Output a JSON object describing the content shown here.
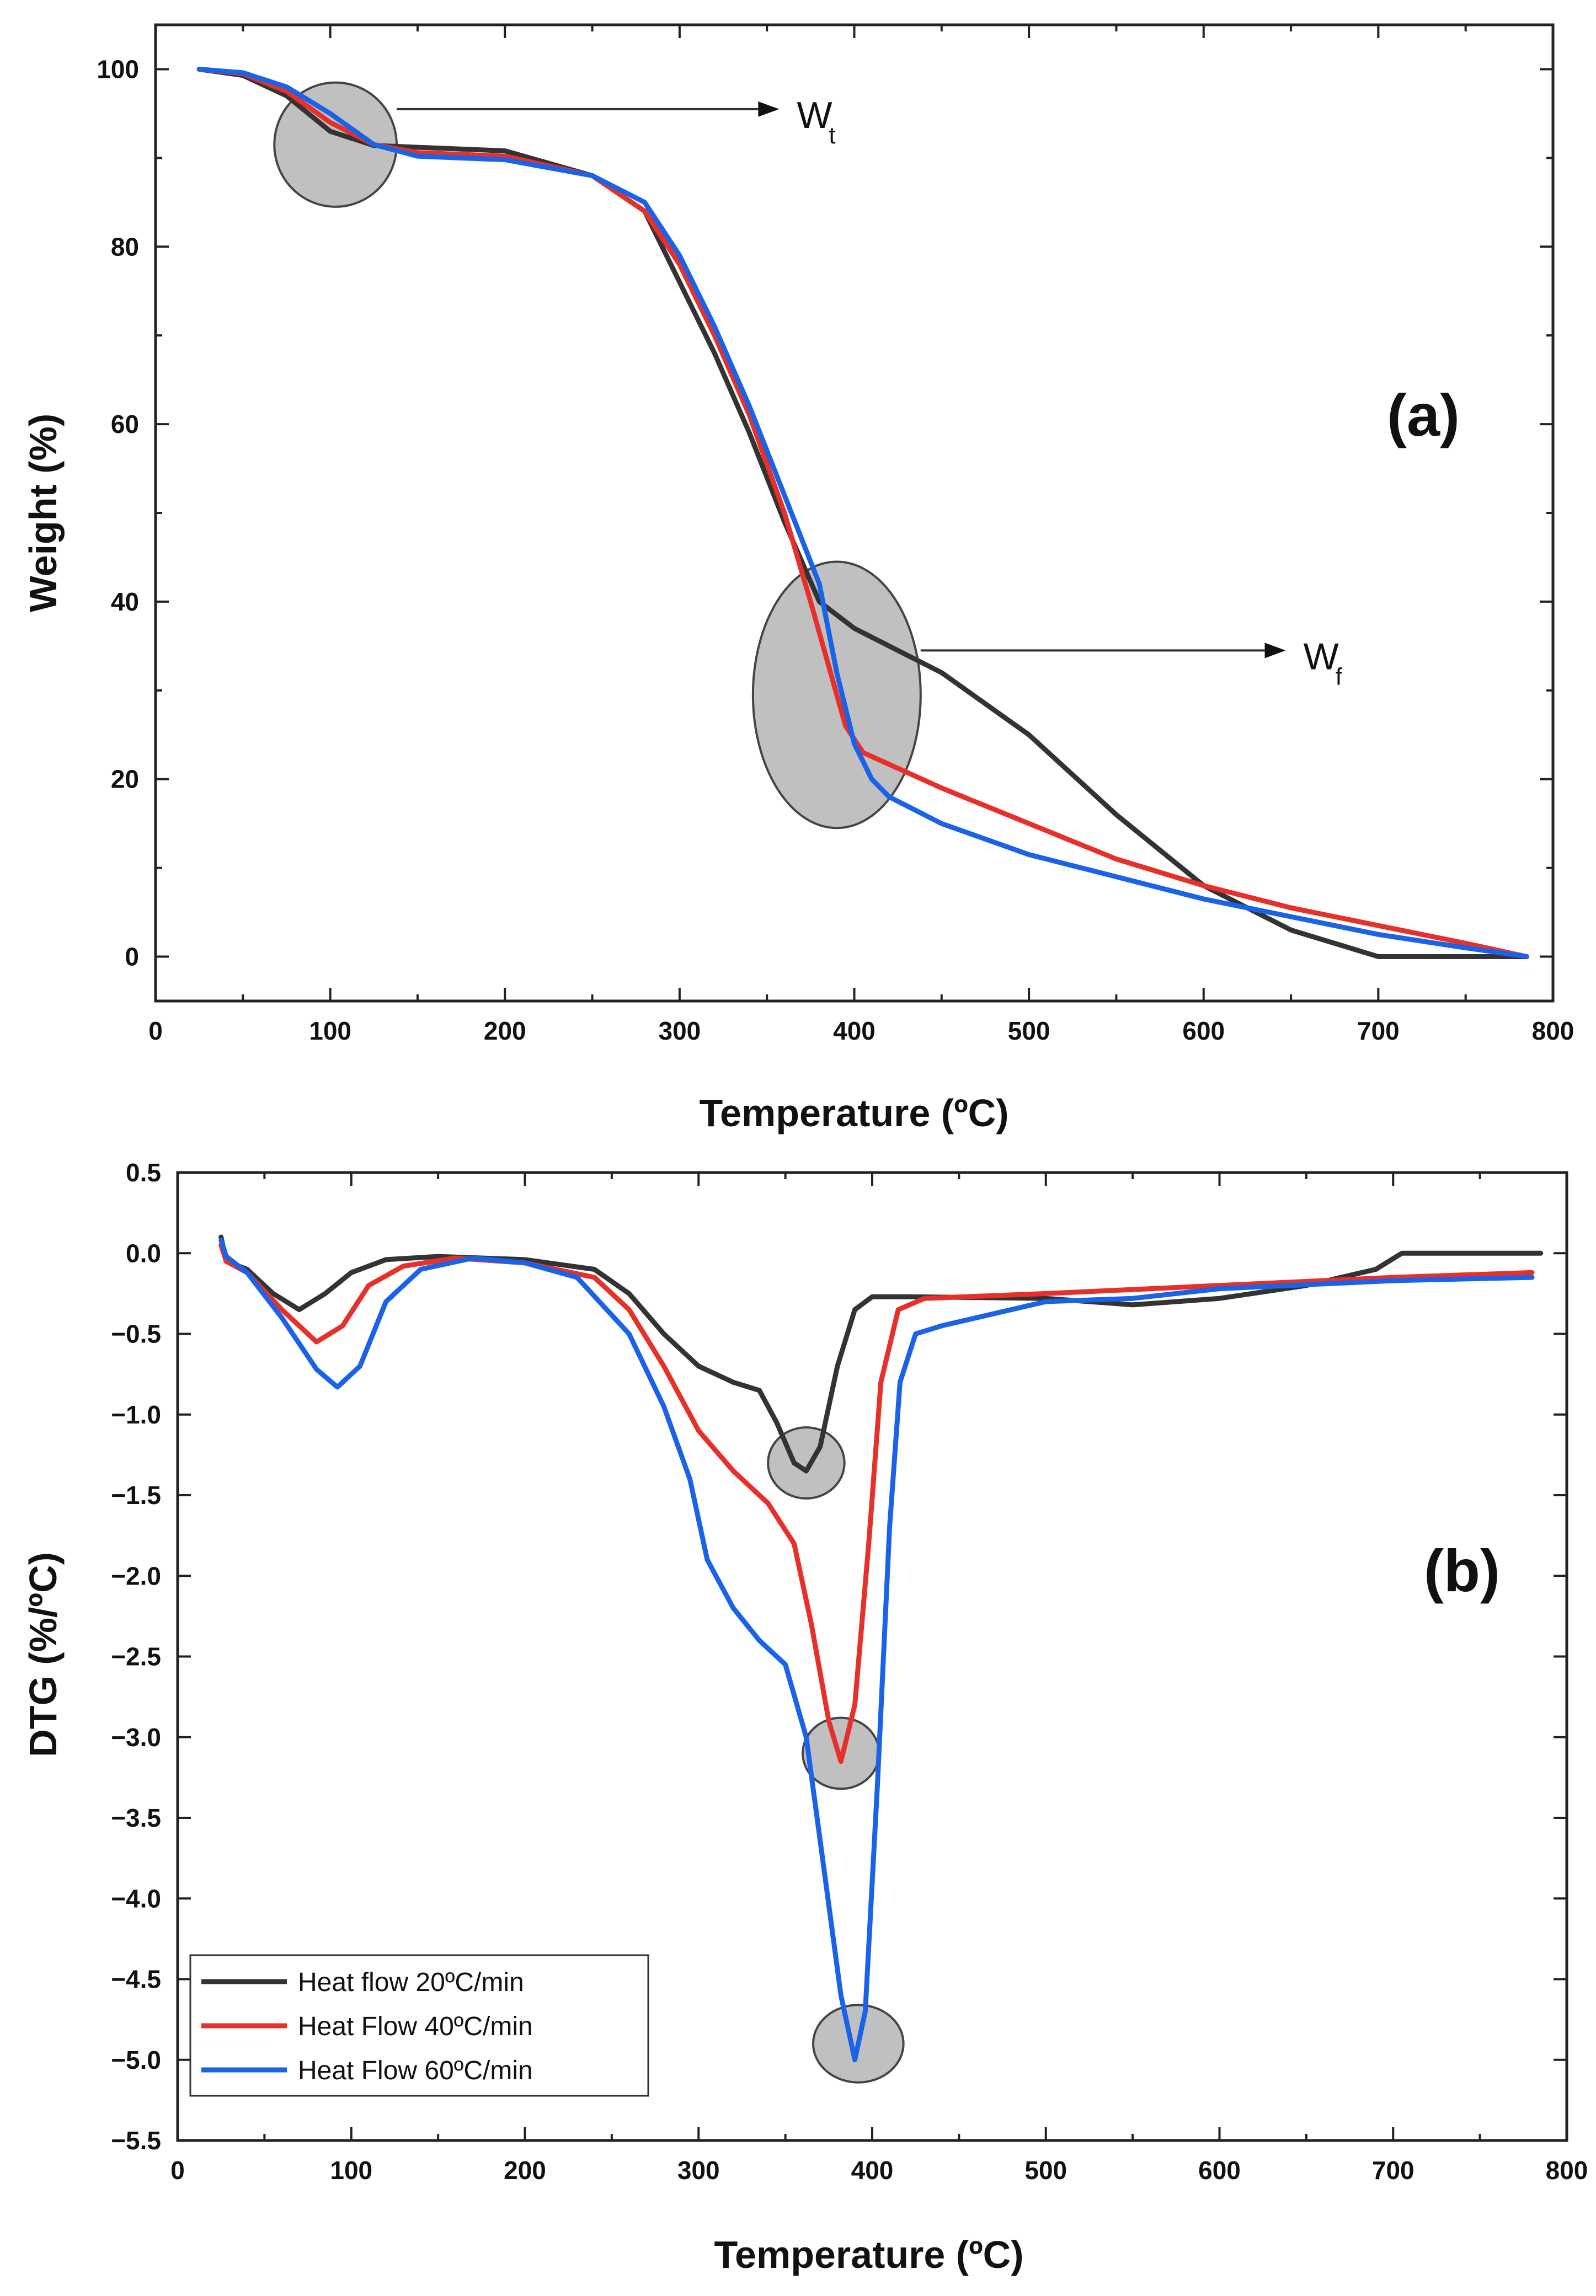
{
  "chart_data": [
    {
      "id": "a",
      "type": "line",
      "panel_label": "(a)",
      "xlabel": "Temperature (ºC)",
      "ylabel": "Weight (%)",
      "xlim": [
        0,
        800
      ],
      "ylim": [
        -5,
        105
      ],
      "xticks": [
        0,
        100,
        200,
        300,
        400,
        500,
        600,
        700,
        800
      ],
      "yticks": [
        0,
        20,
        40,
        60,
        80,
        100
      ],
      "grid": false,
      "series": [
        {
          "name": "Heat flow 20ºC/min",
          "color": "#333333",
          "points": [
            [
              25,
              100
            ],
            [
              50,
              99.3
            ],
            [
              75,
              97
            ],
            [
              100,
              93
            ],
            [
              125,
              91.4
            ],
            [
              150,
              91.2
            ],
            [
              200,
              90.8
            ],
            [
              250,
              88
            ],
            [
              280,
              84
            ],
            [
              300,
              76
            ],
            [
              320,
              68
            ],
            [
              340,
              59
            ],
            [
              360,
              49
            ],
            [
              380,
              40
            ],
            [
              400,
              37
            ],
            [
              450,
              32
            ],
            [
              500,
              25
            ],
            [
              550,
              16
            ],
            [
              600,
              8
            ],
            [
              650,
              3
            ],
            [
              700,
              0
            ],
            [
              750,
              0
            ],
            [
              785,
              0
            ]
          ]
        },
        {
          "name": "Heat Flow 40ºC/min",
          "color": "#e8302a",
          "points": [
            [
              25,
              100
            ],
            [
              50,
              99.5
            ],
            [
              75,
              97.5
            ],
            [
              100,
              94
            ],
            [
              125,
              91.5
            ],
            [
              150,
              90.6
            ],
            [
              200,
              90.2
            ],
            [
              250,
              88
            ],
            [
              280,
              84
            ],
            [
              300,
              78
            ],
            [
              320,
              70
            ],
            [
              340,
              61
            ],
            [
              360,
              50
            ],
            [
              375,
              40
            ],
            [
              385,
              33
            ],
            [
              395,
              26
            ],
            [
              405,
              23
            ],
            [
              450,
              19
            ],
            [
              500,
              15
            ],
            [
              550,
              11
            ],
            [
              600,
              8
            ],
            [
              650,
              5.5
            ],
            [
              700,
              3.5
            ],
            [
              750,
              1.5
            ],
            [
              785,
              0
            ]
          ]
        },
        {
          "name": "Heat Flow 60ºC/min",
          "color": "#1a63e8",
          "points": [
            [
              25,
              100
            ],
            [
              50,
              99.6
            ],
            [
              75,
              98
            ],
            [
              100,
              95
            ],
            [
              125,
              91.5
            ],
            [
              150,
              90.2
            ],
            [
              200,
              89.8
            ],
            [
              250,
              88
            ],
            [
              280,
              85
            ],
            [
              300,
              79
            ],
            [
              320,
              71
            ],
            [
              340,
              62
            ],
            [
              360,
              52
            ],
            [
              380,
              42
            ],
            [
              390,
              32
            ],
            [
              400,
              24
            ],
            [
              410,
              20
            ],
            [
              420,
              18
            ],
            [
              450,
              15
            ],
            [
              500,
              11.5
            ],
            [
              550,
              9
            ],
            [
              600,
              6.5
            ],
            [
              650,
              4.5
            ],
            [
              700,
              2.5
            ],
            [
              750,
              1
            ],
            [
              785,
              0
            ]
          ]
        }
      ],
      "annotations": [
        {
          "label": "W",
          "sub": "t",
          "cx": 103,
          "cy": 91.5,
          "rx": 35,
          "ry": 7,
          "arrow_to_x": 345,
          "arrow_y": 95.5
        },
        {
          "label": "W",
          "sub": "f",
          "cx": 390,
          "cy": 29.5,
          "rx": 48,
          "ry": 15,
          "arrow_to_x": 635,
          "arrow_y": 34.5
        }
      ]
    },
    {
      "id": "b",
      "type": "line",
      "panel_label": "(b)",
      "xlabel": "Temperature (ºC)",
      "ylabel": "DTG (%/ºC)",
      "xlim": [
        0,
        800
      ],
      "ylim": [
        -5.5,
        0.5
      ],
      "xticks": [
        0,
        100,
        200,
        300,
        400,
        500,
        600,
        700,
        800
      ],
      "yticks": [
        0.5,
        0.0,
        -0.5,
        -1.0,
        -1.5,
        -2.0,
        -2.5,
        -3.0,
        -3.5,
        -4.0,
        -4.5,
        -5.0,
        -5.5
      ],
      "ytick_labels": [
        "0.5",
        "0.0",
        "−0.5",
        "−1.0",
        "−1.5",
        "−2.0",
        "−2.5",
        "−3.0",
        "−3.5",
        "−4.0",
        "−4.5",
        "−5.0",
        "−5.5"
      ],
      "grid": false,
      "legend": {
        "position": "bottom-left",
        "entries": [
          "Heat flow 20ºC/min",
          "Heat Flow 40ºC/min",
          "Heat Flow 60ºC/min"
        ]
      },
      "series": [
        {
          "name": "Heat flow 20ºC/min",
          "color": "#333333",
          "points": [
            [
              25,
              0.1
            ],
            [
              28,
              -0.05
            ],
            [
              40,
              -0.1
            ],
            [
              55,
              -0.25
            ],
            [
              70,
              -0.35
            ],
            [
              85,
              -0.25
            ],
            [
              100,
              -0.12
            ],
            [
              120,
              -0.04
            ],
            [
              150,
              -0.02
            ],
            [
              200,
              -0.04
            ],
            [
              240,
              -0.1
            ],
            [
              260,
              -0.25
            ],
            [
              280,
              -0.5
            ],
            [
              300,
              -0.7
            ],
            [
              320,
              -0.8
            ],
            [
              335,
              -0.85
            ],
            [
              345,
              -1.05
            ],
            [
              355,
              -1.3
            ],
            [
              362,
              -1.35
            ],
            [
              370,
              -1.2
            ],
            [
              380,
              -0.7
            ],
            [
              390,
              -0.35
            ],
            [
              400,
              -0.27
            ],
            [
              420,
              -0.27
            ],
            [
              500,
              -0.28
            ],
            [
              550,
              -0.32
            ],
            [
              600,
              -0.28
            ],
            [
              650,
              -0.2
            ],
            [
              690,
              -0.1
            ],
            [
              705,
              0
            ],
            [
              750,
              0
            ],
            [
              785,
              0
            ]
          ]
        },
        {
          "name": "Heat Flow 40ºC/min",
          "color": "#e8302a",
          "points": [
            [
              25,
              0.05
            ],
            [
              28,
              -0.05
            ],
            [
              40,
              -0.12
            ],
            [
              60,
              -0.35
            ],
            [
              80,
              -0.55
            ],
            [
              95,
              -0.45
            ],
            [
              110,
              -0.2
            ],
            [
              130,
              -0.08
            ],
            [
              160,
              -0.03
            ],
            [
              200,
              -0.06
            ],
            [
              240,
              -0.15
            ],
            [
              260,
              -0.35
            ],
            [
              280,
              -0.7
            ],
            [
              300,
              -1.1
            ],
            [
              320,
              -1.35
            ],
            [
              340,
              -1.55
            ],
            [
              355,
              -1.8
            ],
            [
              365,
              -2.3
            ],
            [
              375,
              -2.9
            ],
            [
              382,
              -3.15
            ],
            [
              390,
              -2.8
            ],
            [
              398,
              -1.8
            ],
            [
              405,
              -0.8
            ],
            [
              415,
              -0.35
            ],
            [
              430,
              -0.28
            ],
            [
              500,
              -0.25
            ],
            [
              600,
              -0.2
            ],
            [
              700,
              -0.15
            ],
            [
              780,
              -0.12
            ]
          ]
        },
        {
          "name": "Heat Flow 60ºC/min",
          "color": "#1a63e8",
          "points": [
            [
              25,
              0.08
            ],
            [
              28,
              -0.02
            ],
            [
              40,
              -0.12
            ],
            [
              60,
              -0.4
            ],
            [
              80,
              -0.72
            ],
            [
              92,
              -0.83
            ],
            [
              105,
              -0.7
            ],
            [
              120,
              -0.3
            ],
            [
              140,
              -0.1
            ],
            [
              170,
              -0.03
            ],
            [
              200,
              -0.06
            ],
            [
              230,
              -0.15
            ],
            [
              260,
              -0.5
            ],
            [
              280,
              -0.95
            ],
            [
              295,
              -1.4
            ],
            [
              305,
              -1.9
            ],
            [
              320,
              -2.2
            ],
            [
              335,
              -2.4
            ],
            [
              350,
              -2.55
            ],
            [
              362,
              -3.0
            ],
            [
              372,
              -3.8
            ],
            [
              382,
              -4.6
            ],
            [
              390,
              -5.0
            ],
            [
              396,
              -4.7
            ],
            [
              403,
              -3.3
            ],
            [
              410,
              -1.7
            ],
            [
              416,
              -0.8
            ],
            [
              425,
              -0.5
            ],
            [
              440,
              -0.45
            ],
            [
              500,
              -0.3
            ],
            [
              550,
              -0.28
            ],
            [
              600,
              -0.22
            ],
            [
              700,
              -0.17
            ],
            [
              780,
              -0.15
            ]
          ]
        }
      ],
      "annotations": [
        {
          "cx": 362,
          "cy": -1.3,
          "rx": 22,
          "ry": 0.22
        },
        {
          "cx": 382,
          "cy": -3.1,
          "rx": 22,
          "ry": 0.22
        },
        {
          "cx": 392,
          "cy": -4.9,
          "rx": 26,
          "ry": 0.24
        }
      ]
    }
  ]
}
